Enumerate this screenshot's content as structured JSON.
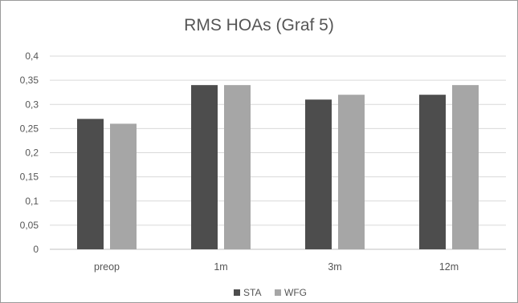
{
  "chart_data": {
    "type": "bar",
    "title": "RMS HOAs (Graf 5)",
    "xlabel": "",
    "ylabel": "",
    "categories": [
      "preop",
      "1m",
      "3m",
      "12m"
    ],
    "series": [
      {
        "name": "STA",
        "values": [
          0.27,
          0.34,
          0.31,
          0.32
        ],
        "color": "#4d4d4d"
      },
      {
        "name": "WFG",
        "values": [
          0.26,
          0.34,
          0.32,
          0.34
        ],
        "color": "#a6a6a6"
      }
    ],
    "ylim": [
      0,
      0.4
    ],
    "yticks": [
      "0",
      "0,05",
      "0,1",
      "0,15",
      "0,2",
      "0,25",
      "0,3",
      "0,35",
      "0,4"
    ],
    "grid": true,
    "legend": "bottom-center",
    "gridline_color": "#d9d9d9",
    "axis_color": "#bfbfbf"
  }
}
